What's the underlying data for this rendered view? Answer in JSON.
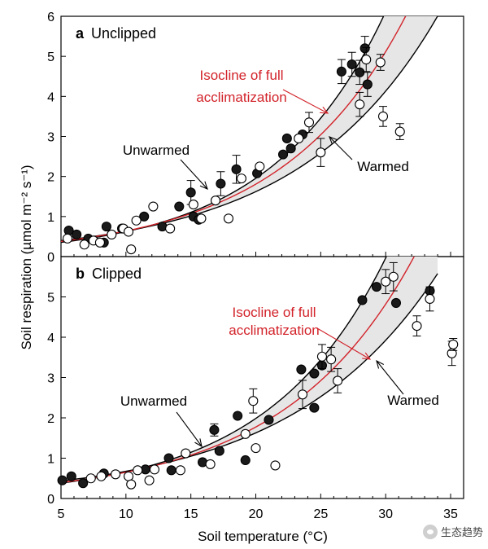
{
  "watermark": "生态趋势",
  "chart_data": [
    {
      "type": "scatter",
      "panel_letter": "a",
      "panel_title": "Unclipped",
      "xlim": [
        5,
        36
      ],
      "ylim": [
        0,
        6
      ],
      "xticks": [
        5,
        10,
        15,
        20,
        25,
        30,
        35
      ],
      "yticks": [
        0,
        1,
        2,
        3,
        4,
        5,
        6
      ],
      "isocline_label": [
        "Isocline of full",
        "acclimatization"
      ],
      "unwarmed_label": "Unwarmed",
      "warmed_label": "Warmed",
      "colors": {
        "isocline": "#d2232a",
        "curve": "#000000",
        "band": "#e6e6e6"
      },
      "curves": {
        "unwarmed": {
          "a": 0.2,
          "b": 0.114,
          "x_range": [
            5,
            35
          ]
        },
        "warmed": {
          "a": 0.25,
          "b": 0.0935,
          "x_range": [
            5,
            35
          ]
        },
        "isocline": {
          "a": 0.226,
          "b": 0.104,
          "x_range": [
            5,
            35
          ]
        }
      },
      "series": [
        {
          "name": "Unwarmed",
          "fill": "filled",
          "points": [
            {
              "x": 5.6,
              "y": 0.65
            },
            {
              "x": 6.2,
              "y": 0.55
            },
            {
              "x": 7.1,
              "y": 0.45
            },
            {
              "x": 8.3,
              "y": 0.35
            },
            {
              "x": 8.5,
              "y": 0.75
            },
            {
              "x": 9.7,
              "y": 0.7
            },
            {
              "x": 11.4,
              "y": 1.0
            },
            {
              "x": 12.8,
              "y": 0.75
            },
            {
              "x": 14.1,
              "y": 1.25
            },
            {
              "x": 15.0,
              "y": 1.6,
              "err": 0.3
            },
            {
              "x": 15.2,
              "y": 1.0
            },
            {
              "x": 15.6,
              "y": 0.92
            },
            {
              "x": 17.3,
              "y": 1.82,
              "err": 0.3
            },
            {
              "x": 18.5,
              "y": 2.18,
              "err": 0.35
            },
            {
              "x": 20.1,
              "y": 2.08
            },
            {
              "x": 22.1,
              "y": 2.55
            },
            {
              "x": 22.4,
              "y": 2.95
            },
            {
              "x": 22.7,
              "y": 2.7
            },
            {
              "x": 23.6,
              "y": 3.05
            },
            {
              "x": 26.6,
              "y": 4.62,
              "err": 0.3
            },
            {
              "x": 27.4,
              "y": 4.8,
              "err": 0.3
            },
            {
              "x": 28.0,
              "y": 4.6,
              "err": 0.3
            },
            {
              "x": 28.4,
              "y": 5.2,
              "err": 0.3
            },
            {
              "x": 28.6,
              "y": 4.3,
              "err": 0.3
            }
          ]
        },
        {
          "name": "Warmed",
          "fill": "open",
          "points": [
            {
              "x": 5.5,
              "y": 0.45
            },
            {
              "x": 6.8,
              "y": 0.3
            },
            {
              "x": 7.5,
              "y": 0.4
            },
            {
              "x": 8.0,
              "y": 0.35
            },
            {
              "x": 8.9,
              "y": 0.55
            },
            {
              "x": 9.8,
              "y": 0.7
            },
            {
              "x": 10.2,
              "y": 0.62
            },
            {
              "x": 10.4,
              "y": 0.18
            },
            {
              "x": 10.8,
              "y": 0.9
            },
            {
              "x": 12.1,
              "y": 1.25
            },
            {
              "x": 13.4,
              "y": 0.7
            },
            {
              "x": 15.2,
              "y": 1.3
            },
            {
              "x": 15.8,
              "y": 0.95
            },
            {
              "x": 16.9,
              "y": 1.4
            },
            {
              "x": 17.9,
              "y": 0.95
            },
            {
              "x": 18.9,
              "y": 1.95
            },
            {
              "x": 20.3,
              "y": 2.25
            },
            {
              "x": 23.3,
              "y": 2.95
            },
            {
              "x": 24.1,
              "y": 3.35,
              "err": 0.25
            },
            {
              "x": 25.0,
              "y": 2.6,
              "err": 0.35
            },
            {
              "x": 28.0,
              "y": 3.8,
              "err": 0.3
            },
            {
              "x": 28.5,
              "y": 4.92,
              "err": 0.3
            },
            {
              "x": 29.6,
              "y": 4.85,
              "err": 0.2
            },
            {
              "x": 29.8,
              "y": 3.5,
              "err": 0.25
            },
            {
              "x": 31.1,
              "y": 3.12,
              "err": 0.2
            }
          ]
        }
      ]
    },
    {
      "type": "scatter",
      "panel_letter": "b",
      "panel_title": "Clipped",
      "xlim": [
        5,
        36
      ],
      "ylim": [
        0,
        6
      ],
      "xticks": [
        5,
        10,
        15,
        20,
        25,
        30,
        35
      ],
      "yticks": [
        0,
        1,
        2,
        3,
        4,
        5
      ],
      "isocline_label": [
        "Isocline of full",
        "acclimatization"
      ],
      "unwarmed_label": "Unwarmed",
      "warmed_label": "Warmed",
      "colors": {
        "isocline": "#d2232a",
        "curve": "#000000",
        "band": "#e6e6e6"
      },
      "curves": {
        "unwarmed": {
          "a": 0.22,
          "b": 0.11,
          "x_range": [
            5,
            34
          ]
        },
        "warmed": {
          "a": 0.28,
          "b": 0.088,
          "x_range": [
            5,
            34
          ]
        },
        "isocline": {
          "a": 0.24,
          "b": 0.1,
          "x_range": [
            5,
            34
          ]
        }
      },
      "series": [
        {
          "name": "Unwarmed",
          "fill": "filled",
          "points": [
            {
              "x": 5.1,
              "y": 0.45
            },
            {
              "x": 5.8,
              "y": 0.55
            },
            {
              "x": 6.7,
              "y": 0.38
            },
            {
              "x": 8.3,
              "y": 0.62
            },
            {
              "x": 11.5,
              "y": 0.72
            },
            {
              "x": 13.3,
              "y": 1.0
            },
            {
              "x": 13.5,
              "y": 0.7
            },
            {
              "x": 15.9,
              "y": 0.9
            },
            {
              "x": 16.8,
              "y": 1.7,
              "err": 0.15
            },
            {
              "x": 17.2,
              "y": 1.18
            },
            {
              "x": 18.6,
              "y": 2.05
            },
            {
              "x": 19.2,
              "y": 0.95
            },
            {
              "x": 21.0,
              "y": 1.95
            },
            {
              "x": 23.5,
              "y": 3.2
            },
            {
              "x": 24.5,
              "y": 3.1
            },
            {
              "x": 24.5,
              "y": 2.25
            },
            {
              "x": 25.1,
              "y": 3.3
            },
            {
              "x": 28.2,
              "y": 4.92
            },
            {
              "x": 29.3,
              "y": 5.25
            },
            {
              "x": 30.8,
              "y": 4.85
            },
            {
              "x": 33.4,
              "y": 5.15
            }
          ]
        },
        {
          "name": "Warmed",
          "fill": "open",
          "points": [
            {
              "x": 7.3,
              "y": 0.5
            },
            {
              "x": 8.1,
              "y": 0.55
            },
            {
              "x": 9.2,
              "y": 0.6
            },
            {
              "x": 10.2,
              "y": 0.55
            },
            {
              "x": 10.4,
              "y": 0.35
            },
            {
              "x": 10.9,
              "y": 0.7
            },
            {
              "x": 11.8,
              "y": 0.45
            },
            {
              "x": 12.2,
              "y": 0.72
            },
            {
              "x": 14.2,
              "y": 0.7
            },
            {
              "x": 14.6,
              "y": 1.12
            },
            {
              "x": 16.5,
              "y": 0.85
            },
            {
              "x": 19.2,
              "y": 1.6
            },
            {
              "x": 19.8,
              "y": 2.42,
              "err": 0.3
            },
            {
              "x": 20.0,
              "y": 1.25
            },
            {
              "x": 21.5,
              "y": 0.82
            },
            {
              "x": 23.6,
              "y": 2.58,
              "err": 0.35
            },
            {
              "x": 25.1,
              "y": 3.52,
              "err": 0.3
            },
            {
              "x": 25.8,
              "y": 3.45,
              "err": 0.3
            },
            {
              "x": 26.3,
              "y": 2.92,
              "err": 0.3
            },
            {
              "x": 30.0,
              "y": 5.38,
              "err": 0.3
            },
            {
              "x": 30.6,
              "y": 5.5,
              "err": 0.35
            },
            {
              "x": 32.4,
              "y": 4.28,
              "err": 0.25
            },
            {
              "x": 33.4,
              "y": 4.95,
              "err": 0.3
            },
            {
              "x": 35.1,
              "y": 3.6,
              "err": 0.3
            },
            {
              "x": 35.2,
              "y": 3.82,
              "err": 0.15
            }
          ]
        }
      ]
    }
  ],
  "axes": {
    "xlabel": "Soil temperature (°C)",
    "ylabel": "Soil respiration (µmol m⁻² s⁻¹)"
  }
}
